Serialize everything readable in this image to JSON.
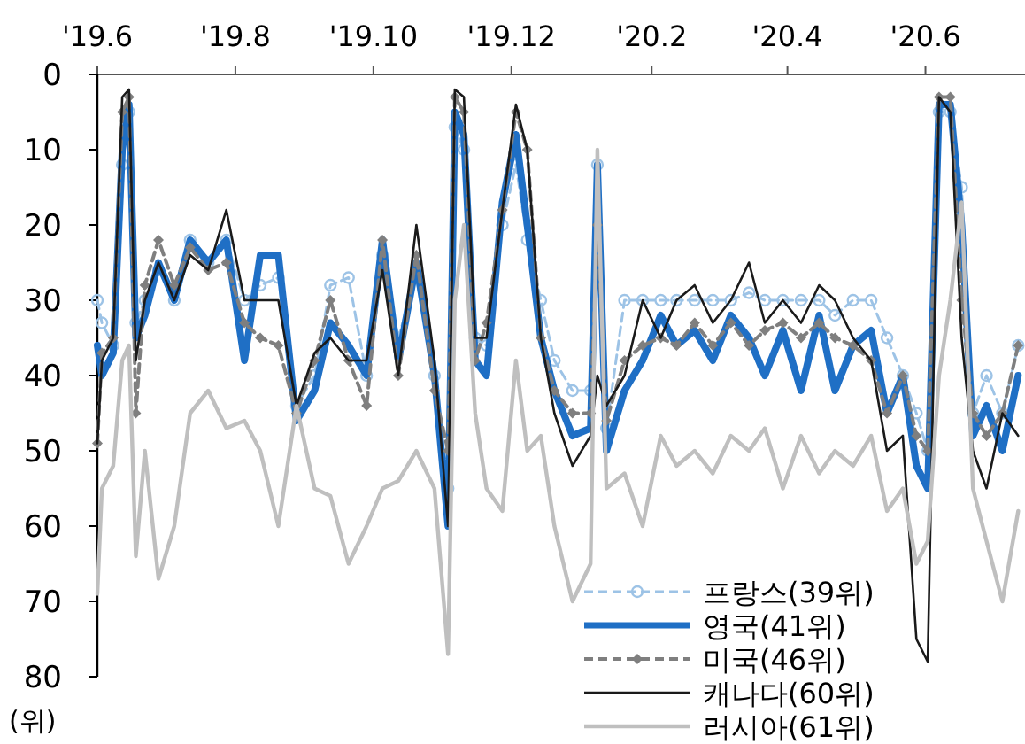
{
  "chart_data": {
    "type": "line",
    "ylabel": "(위)",
    "legend": "bottom right",
    "grid": false,
    "x": [
      "2019-06-01",
      "2019-06-03",
      "2019-06-08",
      "2019-06-12",
      "2019-06-15",
      "2019-06-18",
      "2019-06-22",
      "2019-06-28",
      "2019-07-05",
      "2019-07-12",
      "2019-07-20",
      "2019-07-28",
      "2019-08-05",
      "2019-08-12",
      "2019-08-20",
      "2019-08-28",
      "2019-09-05",
      "2019-09-12",
      "2019-09-20",
      "2019-09-28",
      "2019-10-05",
      "2019-10-12",
      "2019-10-20",
      "2019-10-28",
      "2019-11-03",
      "2019-11-06",
      "2019-11-10",
      "2019-11-15",
      "2019-11-20",
      "2019-11-27",
      "2019-12-03",
      "2019-12-08",
      "2019-12-14",
      "2019-12-20",
      "2019-12-28",
      "2020-01-05",
      "2020-01-08",
      "2020-01-12",
      "2020-01-20",
      "2020-01-28",
      "2020-02-05",
      "2020-02-12",
      "2020-02-20",
      "2020-02-28",
      "2020-03-07",
      "2020-03-15",
      "2020-03-22",
      "2020-03-30",
      "2020-04-07",
      "2020-04-15",
      "2020-04-22",
      "2020-04-30",
      "2020-05-08",
      "2020-05-15",
      "2020-05-22",
      "2020-05-28",
      "2020-06-02",
      "2020-06-07",
      "2020-06-12",
      "2020-06-17",
      "2020-06-22",
      "2020-06-28",
      "2020-07-05",
      "2020-07-12"
    ],
    "xlim": [
      "2019-06-01",
      "2020-07-15"
    ],
    "xticks": [
      {
        "value": "2019-06-01",
        "label": "'19.6"
      },
      {
        "value": "2019-08-01",
        "label": "'19.8"
      },
      {
        "value": "2019-10-01",
        "label": "'19.10"
      },
      {
        "value": "2019-12-01",
        "label": "'19.12"
      },
      {
        "value": "2020-02-01",
        "label": "'20.2"
      },
      {
        "value": "2020-04-01",
        "label": "'20.4"
      },
      {
        "value": "2020-06-01",
        "label": "'20.6"
      }
    ],
    "ylim": [
      80,
      0
    ],
    "yticks": [
      0,
      10,
      20,
      30,
      40,
      50,
      60,
      70,
      80
    ],
    "series": [
      {
        "name": "프랑스(39위)",
        "color": "#9dc3e6",
        "line_style": "dashed",
        "marker": "circle",
        "values": [
          30,
          33,
          36,
          12,
          5,
          33,
          30,
          26,
          30,
          22,
          25,
          22,
          30,
          28,
          27,
          44,
          40,
          28,
          27,
          40,
          24,
          35,
          27,
          40,
          55,
          7,
          10,
          35,
          36,
          20,
          12,
          22,
          30,
          38,
          42,
          42,
          12,
          47,
          30,
          30,
          30,
          30,
          30,
          30,
          30,
          29,
          30,
          30,
          30,
          30,
          32,
          30,
          30,
          35,
          40,
          45,
          50,
          5,
          5,
          15,
          45,
          40,
          45,
          36
        ]
      },
      {
        "name": "영국(41위)",
        "color": "#1f6fc5",
        "line_style": "solid",
        "marker": "none",
        "values": [
          36,
          40,
          37,
          10,
          4,
          35,
          32,
          25,
          30,
          22,
          25,
          22,
          38,
          24,
          24,
          46,
          42,
          33,
          36,
          40,
          22,
          38,
          25,
          40,
          60,
          5,
          8,
          38,
          40,
          17,
          8,
          20,
          35,
          42,
          48,
          47,
          12,
          50,
          42,
          38,
          32,
          36,
          34,
          38,
          32,
          35,
          40,
          34,
          42,
          32,
          42,
          36,
          34,
          45,
          40,
          52,
          55,
          4,
          4,
          20,
          48,
          44,
          50,
          40
        ]
      },
      {
        "name": "미국(46위)",
        "color": "#7f7f7f",
        "line_style": "dashed",
        "marker": "diamond",
        "values": [
          49,
          37,
          35,
          5,
          3,
          45,
          28,
          22,
          28,
          23,
          26,
          25,
          33,
          35,
          36,
          45,
          38,
          30,
          38,
          44,
          22,
          40,
          24,
          42,
          50,
          3,
          5,
          38,
          33,
          18,
          5,
          10,
          35,
          42,
          45,
          45,
          20,
          46,
          38,
          36,
          35,
          36,
          33,
          36,
          33,
          36,
          34,
          33,
          35,
          33,
          35,
          36,
          38,
          45,
          40,
          48,
          50,
          3,
          3,
          30,
          45,
          48,
          45,
          36
        ]
      },
      {
        "name": "캐나다(60위)",
        "color": "#1a1a1a",
        "line_style": "solid",
        "marker": "none",
        "values": [
          49,
          38,
          35,
          3,
          2,
          38,
          30,
          25,
          30,
          24,
          26,
          18,
          30,
          30,
          30,
          44,
          37,
          35,
          38,
          38,
          26,
          40,
          20,
          38,
          60,
          2,
          3,
          35,
          35,
          18,
          4,
          10,
          35,
          45,
          52,
          48,
          40,
          44,
          40,
          30,
          35,
          30,
          28,
          33,
          30,
          25,
          33,
          30,
          33,
          28,
          30,
          35,
          38,
          50,
          48,
          75,
          78,
          3,
          5,
          35,
          50,
          55,
          45,
          48
        ]
      },
      {
        "name": "러시아(61위)",
        "color": "#bfbfbf",
        "line_style": "solid",
        "marker": "none",
        "values": [
          69,
          55,
          52,
          38,
          36,
          64,
          50,
          67,
          60,
          45,
          42,
          47,
          46,
          50,
          60,
          44,
          55,
          56,
          65,
          60,
          55,
          54,
          50,
          55,
          77,
          30,
          20,
          45,
          55,
          58,
          38,
          50,
          48,
          60,
          70,
          65,
          10,
          55,
          53,
          60,
          48,
          52,
          50,
          53,
          48,
          50,
          47,
          55,
          48,
          53,
          50,
          52,
          48,
          58,
          55,
          65,
          62,
          40,
          30,
          17,
          55,
          62,
          70,
          58
        ]
      }
    ]
  }
}
